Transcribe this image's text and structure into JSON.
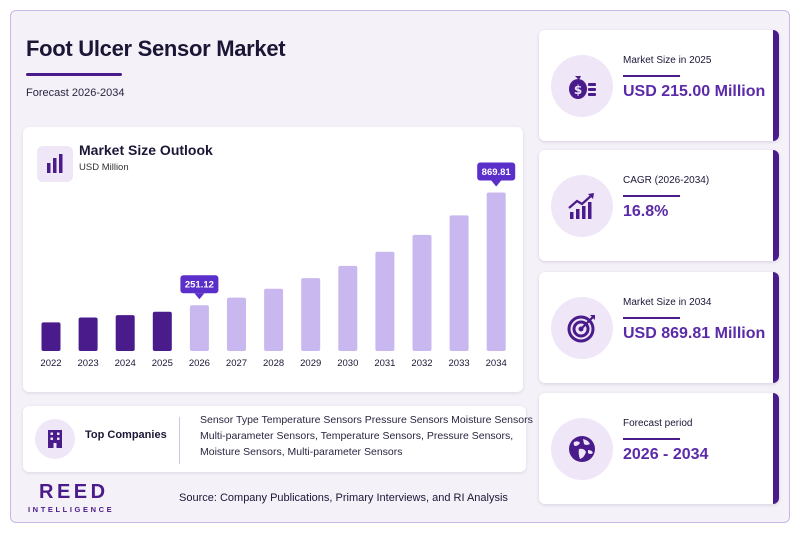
{
  "header": {
    "title": "Foot Ulcer Sensor Market",
    "subtitle": "Forecast 2026-2034"
  },
  "chart_panel": {
    "title": "Market Size Outlook",
    "unit": "USD Million"
  },
  "chart_data": {
    "type": "bar",
    "categories": [
      "2022",
      "2023",
      "2024",
      "2025",
      "2026",
      "2027",
      "2028",
      "2029",
      "2030",
      "2031",
      "2032",
      "2033",
      "2034"
    ],
    "values": [
      157,
      184,
      197,
      215,
      251.12,
      293,
      342,
      400,
      467,
      545,
      637,
      744,
      869.81
    ],
    "ylim": [
      0,
      900
    ],
    "callouts": [
      {
        "year": "2026",
        "label": "251.12"
      },
      {
        "year": "2034",
        "label": "869.81"
      }
    ],
    "historical_color": "#4a1b8a",
    "forecast_color": "#c9b8f0",
    "callout_color": "#5b2fc9"
  },
  "companies": {
    "label": "Top Companies",
    "text": "Sensor Type Temperature Sensors Pressure Sensors Moisture Sensors Multi-parameter Sensors, Temperature Sensors, Pressure Sensors, Moisture Sensors, Multi-parameter Sensors"
  },
  "stats": [
    {
      "label": "Market Size in 2025",
      "value": "USD 215.00 Million",
      "icon": "money-bag-icon"
    },
    {
      "label": "CAGR (2026-2034)",
      "value": "16.8%",
      "icon": "growth-chart-icon"
    },
    {
      "label": "Market Size in 2034",
      "value": "USD 869.81 Million",
      "icon": "target-icon"
    },
    {
      "label": "Forecast period",
      "value": "2026 - 2034",
      "icon": "globe-icon"
    }
  ],
  "footer": {
    "logo_main": "REED",
    "logo_sub": "INTELLIGENCE",
    "source": "Source: Company Publications, Primary Interviews, and RI Analysis"
  },
  "colors": {
    "accent": "#4a1b8a",
    "value_text": "#5b2aa8",
    "icon_bg": "#efe6f8"
  }
}
